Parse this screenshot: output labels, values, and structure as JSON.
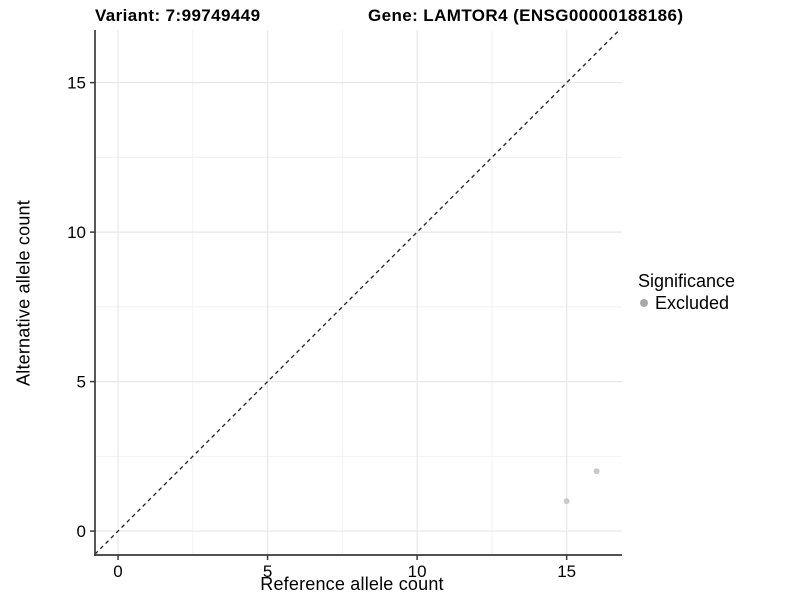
{
  "header": {
    "variant_title": "Variant: 7:99749449",
    "gene_title": "Gene: LAMTOR4 (ENSG00000188186)"
  },
  "axes": {
    "x_label": "Reference allele count",
    "y_label": "Alternative allele count"
  },
  "legend": {
    "title": "Significance",
    "items": [
      {
        "label": "Excluded",
        "color": "#a8a8a8"
      }
    ]
  },
  "chart_data": {
    "type": "scatter",
    "title": "Variant: 7:99749449   Gene: LAMTOR4 (ENSG00000188186)",
    "xlabel": "Reference allele count",
    "ylabel": "Alternative allele count",
    "xlim": [
      -0.77,
      16.85
    ],
    "ylim": [
      -0.8,
      16.76
    ],
    "x_ticks": [
      0,
      5,
      10,
      15
    ],
    "y_ticks": [
      0,
      5,
      10,
      15
    ],
    "minor_ticks_x": [
      2.5,
      7.5,
      12.5
    ],
    "minor_ticks_y": [
      2.5,
      7.5,
      12.5
    ],
    "grid": true,
    "legend_position": "right",
    "series": [
      {
        "name": "Excluded",
        "color": "#c9c9c9",
        "points": [
          {
            "x": 15,
            "y": 1
          },
          {
            "x": 16,
            "y": 2
          }
        ]
      }
    ],
    "reference_line": {
      "type": "identity",
      "style": "dashed",
      "color": "#222222"
    },
    "colors": {
      "grid_major": "#e7e7e7",
      "grid_minor": "#f2f2f2",
      "axis_line": "#3a3a3a",
      "text": "#000000",
      "background": "#ffffff"
    }
  }
}
